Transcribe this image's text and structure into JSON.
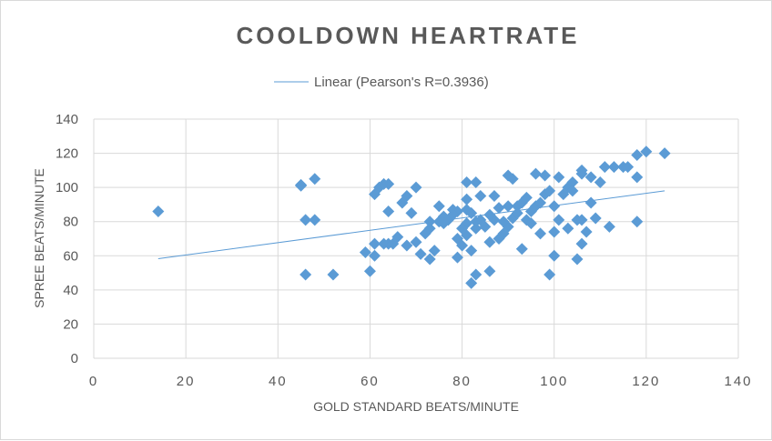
{
  "chart_data": {
    "type": "scatter",
    "title": "COOLDOWN  HEARTRATE",
    "xlabel": "GOLD STANDARD BEATS/MINUTE",
    "ylabel": "SPREE BEATS/MINUTE",
    "xlim": [
      0,
      140
    ],
    "ylim": [
      0,
      140
    ],
    "xticks": [
      "0",
      "20",
      "40",
      "60",
      "80",
      "100",
      "120",
      "140"
    ],
    "yticks": [
      "0",
      "20",
      "40",
      "60",
      "80",
      "100",
      "120",
      "140"
    ],
    "grid": true,
    "legend": {
      "position": "top",
      "label": "Linear (Pearson's R=0.3936)"
    },
    "colors": {
      "marker": "#5b9bd5",
      "trendline": "#5b9bd5",
      "grid": "#d9d9d9"
    },
    "trendline": {
      "x": [
        14,
        124
      ],
      "y": [
        58.3,
        98
      ]
    },
    "points": [
      [
        14,
        86
      ],
      [
        45,
        101.5
      ],
      [
        45,
        101
      ],
      [
        48,
        105
      ],
      [
        46,
        81
      ],
      [
        48,
        81
      ],
      [
        46,
        49
      ],
      [
        52,
        49
      ],
      [
        59,
        62
      ],
      [
        60,
        51
      ],
      [
        61,
        60
      ],
      [
        61,
        96
      ],
      [
        62,
        100
      ],
      [
        63,
        102
      ],
      [
        64,
        102
      ],
      [
        61,
        67
      ],
      [
        63,
        67
      ],
      [
        64,
        67
      ],
      [
        65,
        67
      ],
      [
        66,
        71
      ],
      [
        64,
        86
      ],
      [
        67,
        91
      ],
      [
        68,
        95
      ],
      [
        69,
        85
      ],
      [
        70,
        100
      ],
      [
        68,
        66
      ],
      [
        70,
        68
      ],
      [
        71,
        61
      ],
      [
        72,
        73
      ],
      [
        73,
        76
      ],
      [
        73,
        58
      ],
      [
        74,
        63
      ],
      [
        73,
        80
      ],
      [
        75,
        80
      ],
      [
        76,
        83
      ],
      [
        75,
        89
      ],
      [
        77,
        81
      ],
      [
        78,
        87
      ],
      [
        79,
        86
      ],
      [
        79,
        70
      ],
      [
        79,
        59
      ],
      [
        80,
        66
      ],
      [
        81,
        72
      ],
      [
        81,
        79
      ],
      [
        81,
        87
      ],
      [
        81,
        93
      ],
      [
        81,
        103
      ],
      [
        82,
        44
      ],
      [
        82,
        63
      ],
      [
        83,
        49
      ],
      [
        83,
        76
      ],
      [
        83,
        80
      ],
      [
        84,
        81
      ],
      [
        83,
        103
      ],
      [
        85,
        77
      ],
      [
        86,
        68
      ],
      [
        86,
        51
      ],
      [
        87,
        95
      ],
      [
        87,
        81
      ],
      [
        88,
        70
      ],
      [
        89,
        73
      ],
      [
        90,
        77
      ],
      [
        90,
        89
      ],
      [
        90,
        107
      ],
      [
        91,
        105
      ],
      [
        91,
        82
      ],
      [
        92,
        89
      ],
      [
        93,
        91
      ],
      [
        93,
        64
      ],
      [
        94,
        94
      ],
      [
        94,
        81
      ],
      [
        95,
        86
      ],
      [
        96,
        89
      ],
      [
        96,
        108
      ],
      [
        97,
        73
      ],
      [
        97,
        91
      ],
      [
        98,
        96
      ],
      [
        98,
        107
      ],
      [
        99,
        49
      ],
      [
        100,
        60
      ],
      [
        100,
        74
      ],
      [
        100,
        89
      ],
      [
        101,
        106
      ],
      [
        101,
        81
      ],
      [
        102,
        96
      ],
      [
        103,
        100
      ],
      [
        103,
        76
      ],
      [
        104,
        103
      ],
      [
        105,
        81
      ],
      [
        106,
        108
      ],
      [
        106,
        110
      ],
      [
        105,
        58
      ],
      [
        106,
        67
      ],
      [
        106,
        81
      ],
      [
        107,
        74
      ],
      [
        108,
        106
      ],
      [
        108,
        91
      ],
      [
        109,
        82
      ],
      [
        110,
        103
      ],
      [
        111,
        112
      ],
      [
        112,
        77
      ],
      [
        113,
        112
      ],
      [
        115,
        112
      ],
      [
        116,
        112
      ],
      [
        118,
        119
      ],
      [
        118,
        106
      ],
      [
        118,
        80
      ],
      [
        120,
        121
      ],
      [
        124,
        120
      ],
      [
        95,
        79
      ],
      [
        80,
        76
      ],
      [
        84,
        95
      ],
      [
        78,
        84
      ],
      [
        86,
        84
      ],
      [
        88,
        88
      ],
      [
        92,
        85
      ],
      [
        99,
        98
      ],
      [
        104,
        98
      ],
      [
        76,
        79
      ],
      [
        82,
        85
      ],
      [
        89,
        80
      ]
    ]
  }
}
